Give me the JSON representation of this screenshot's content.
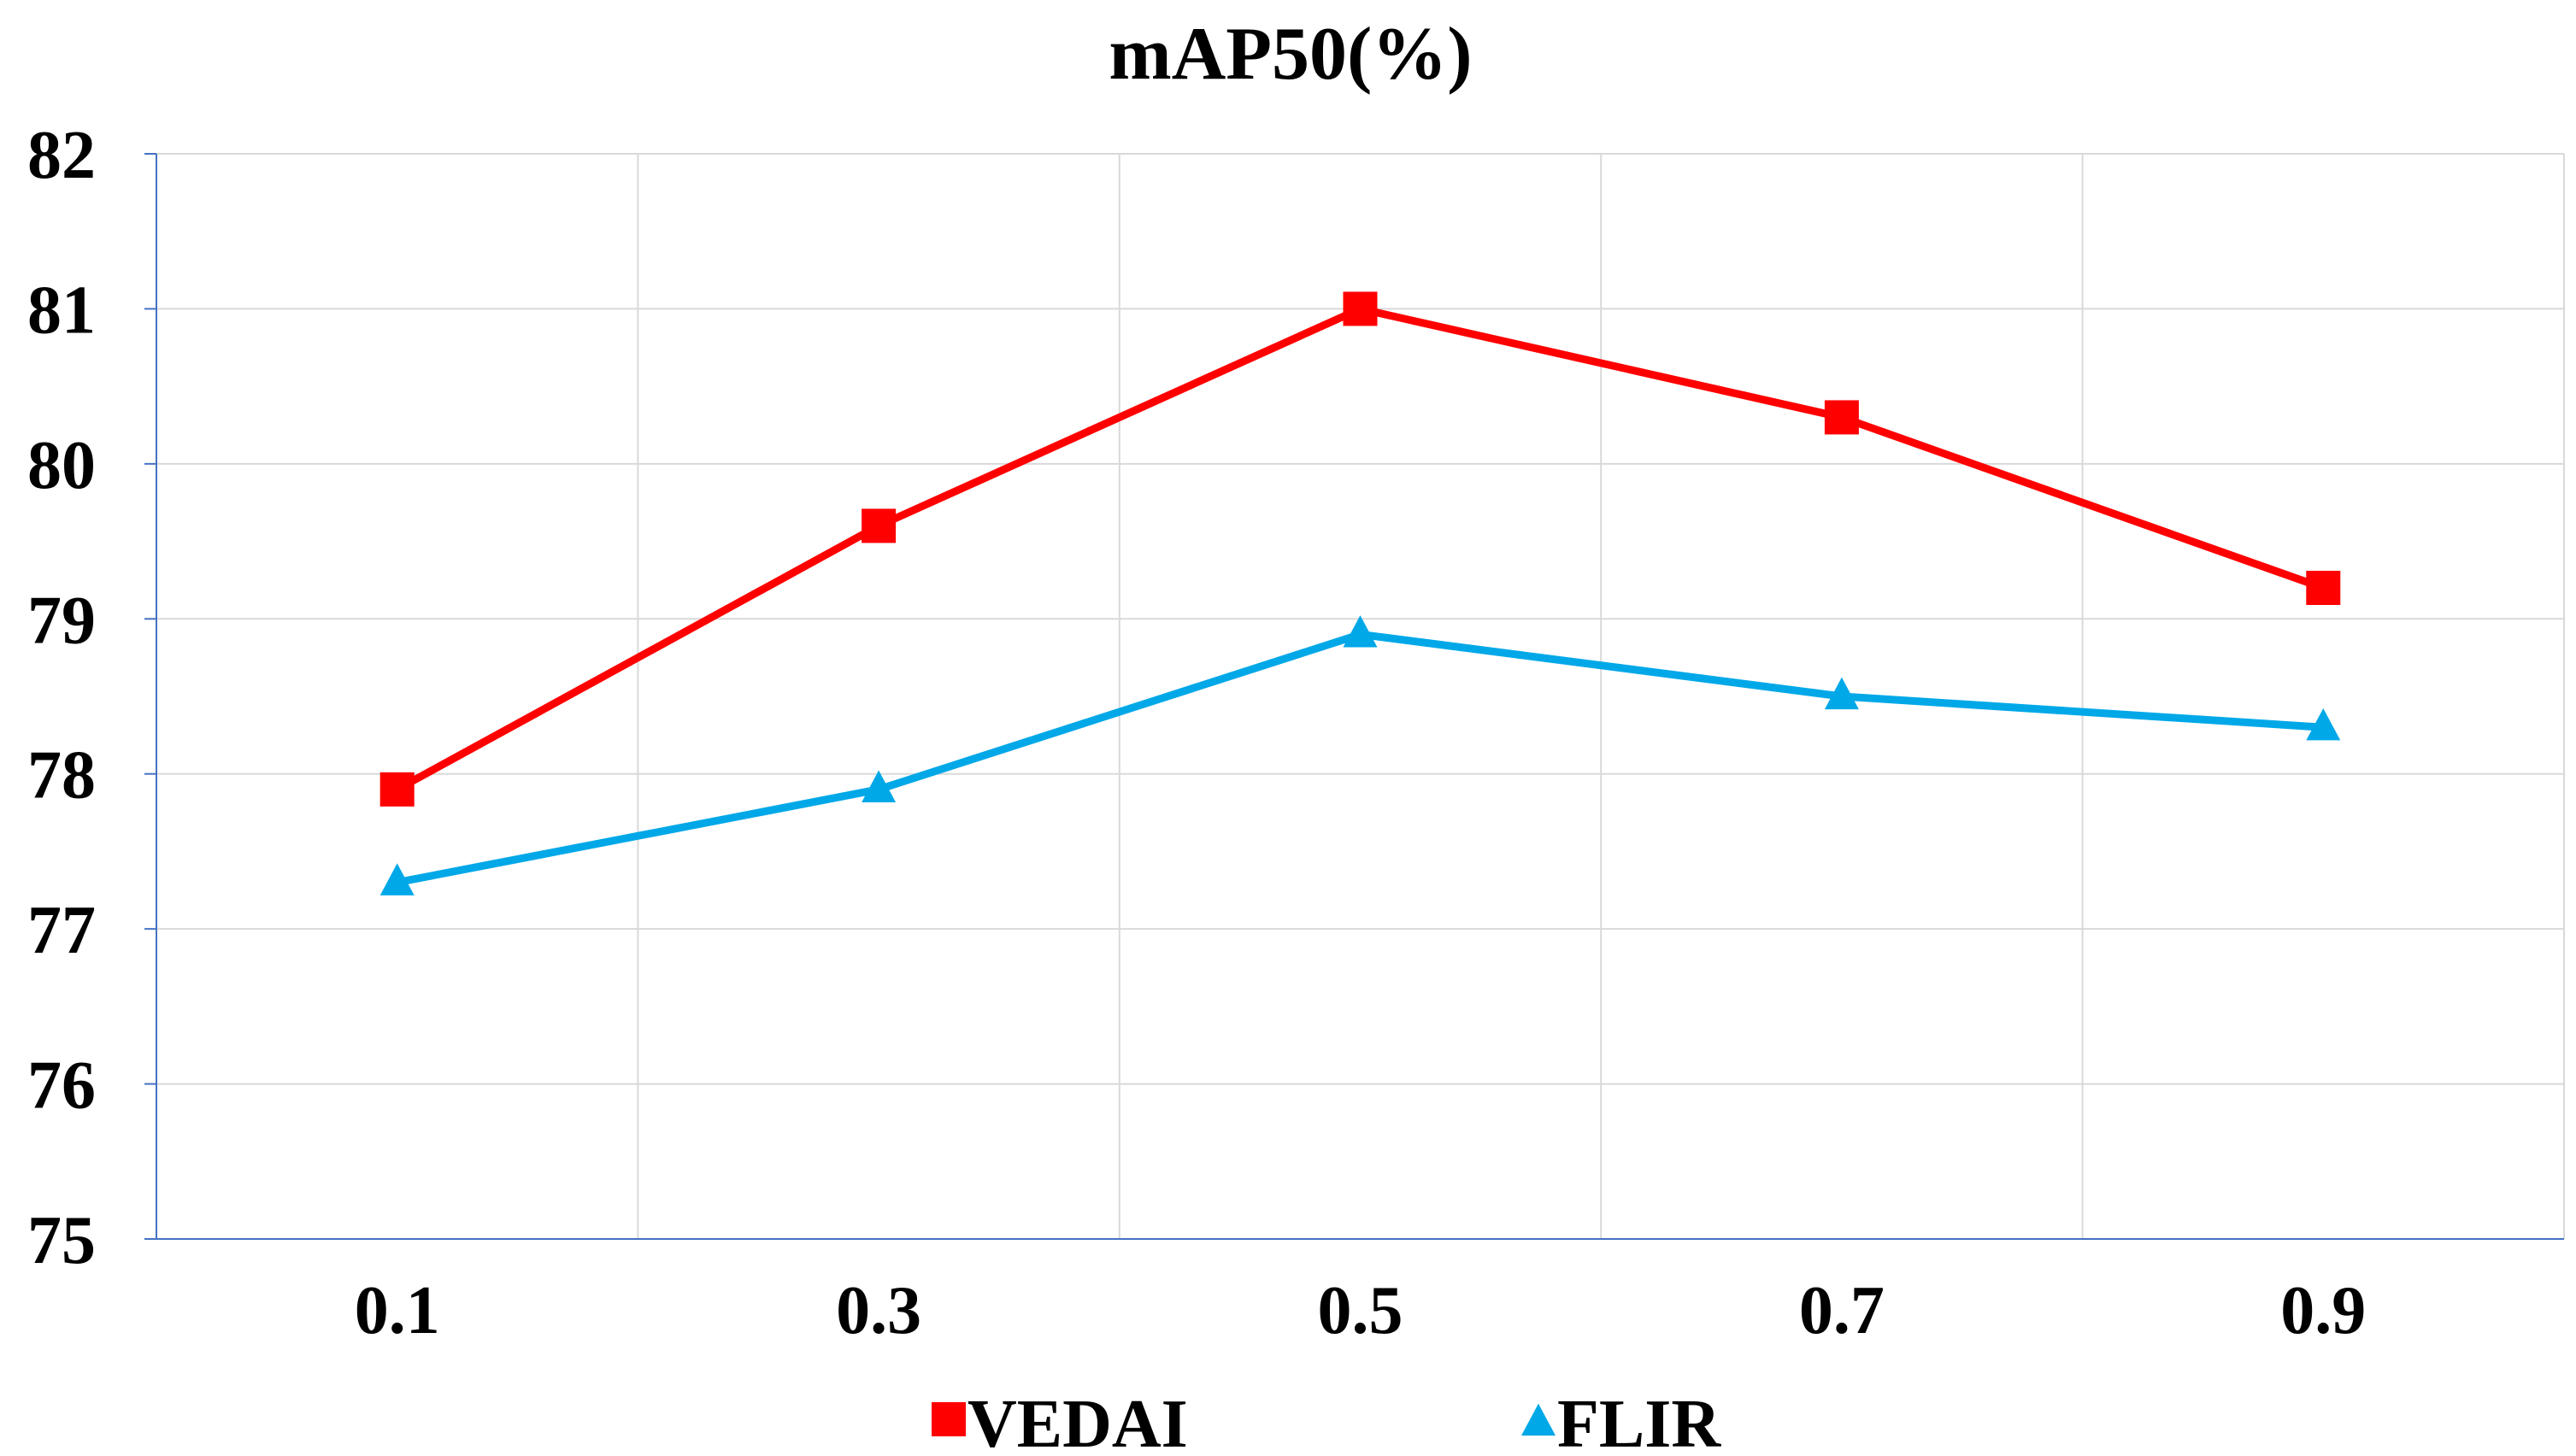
{
  "chart_data": {
    "type": "line",
    "title": "mAP50(%)",
    "xlabel": "",
    "ylabel": "",
    "categories": [
      "0.1",
      "0.3",
      "0.5",
      "0.7",
      "0.9"
    ],
    "ylim": [
      75,
      82
    ],
    "yticks": [
      "75",
      "76",
      "77",
      "78",
      "79",
      "80",
      "81",
      "82"
    ],
    "grid": true,
    "legend_position": "bottom",
    "series": [
      {
        "name": "VEDAI",
        "color": "#ff0000",
        "marker": "square",
        "values": [
          77.9,
          79.6,
          81.0,
          80.3,
          79.2
        ]
      },
      {
        "name": "FLIR",
        "color": "#00a8e8",
        "marker": "triangle",
        "values": [
          77.3,
          77.9,
          78.9,
          78.5,
          78.3
        ]
      }
    ],
    "colors": {
      "grid": "#d9d9d9",
      "axis": "#4472c4",
      "text": "#000000"
    }
  }
}
